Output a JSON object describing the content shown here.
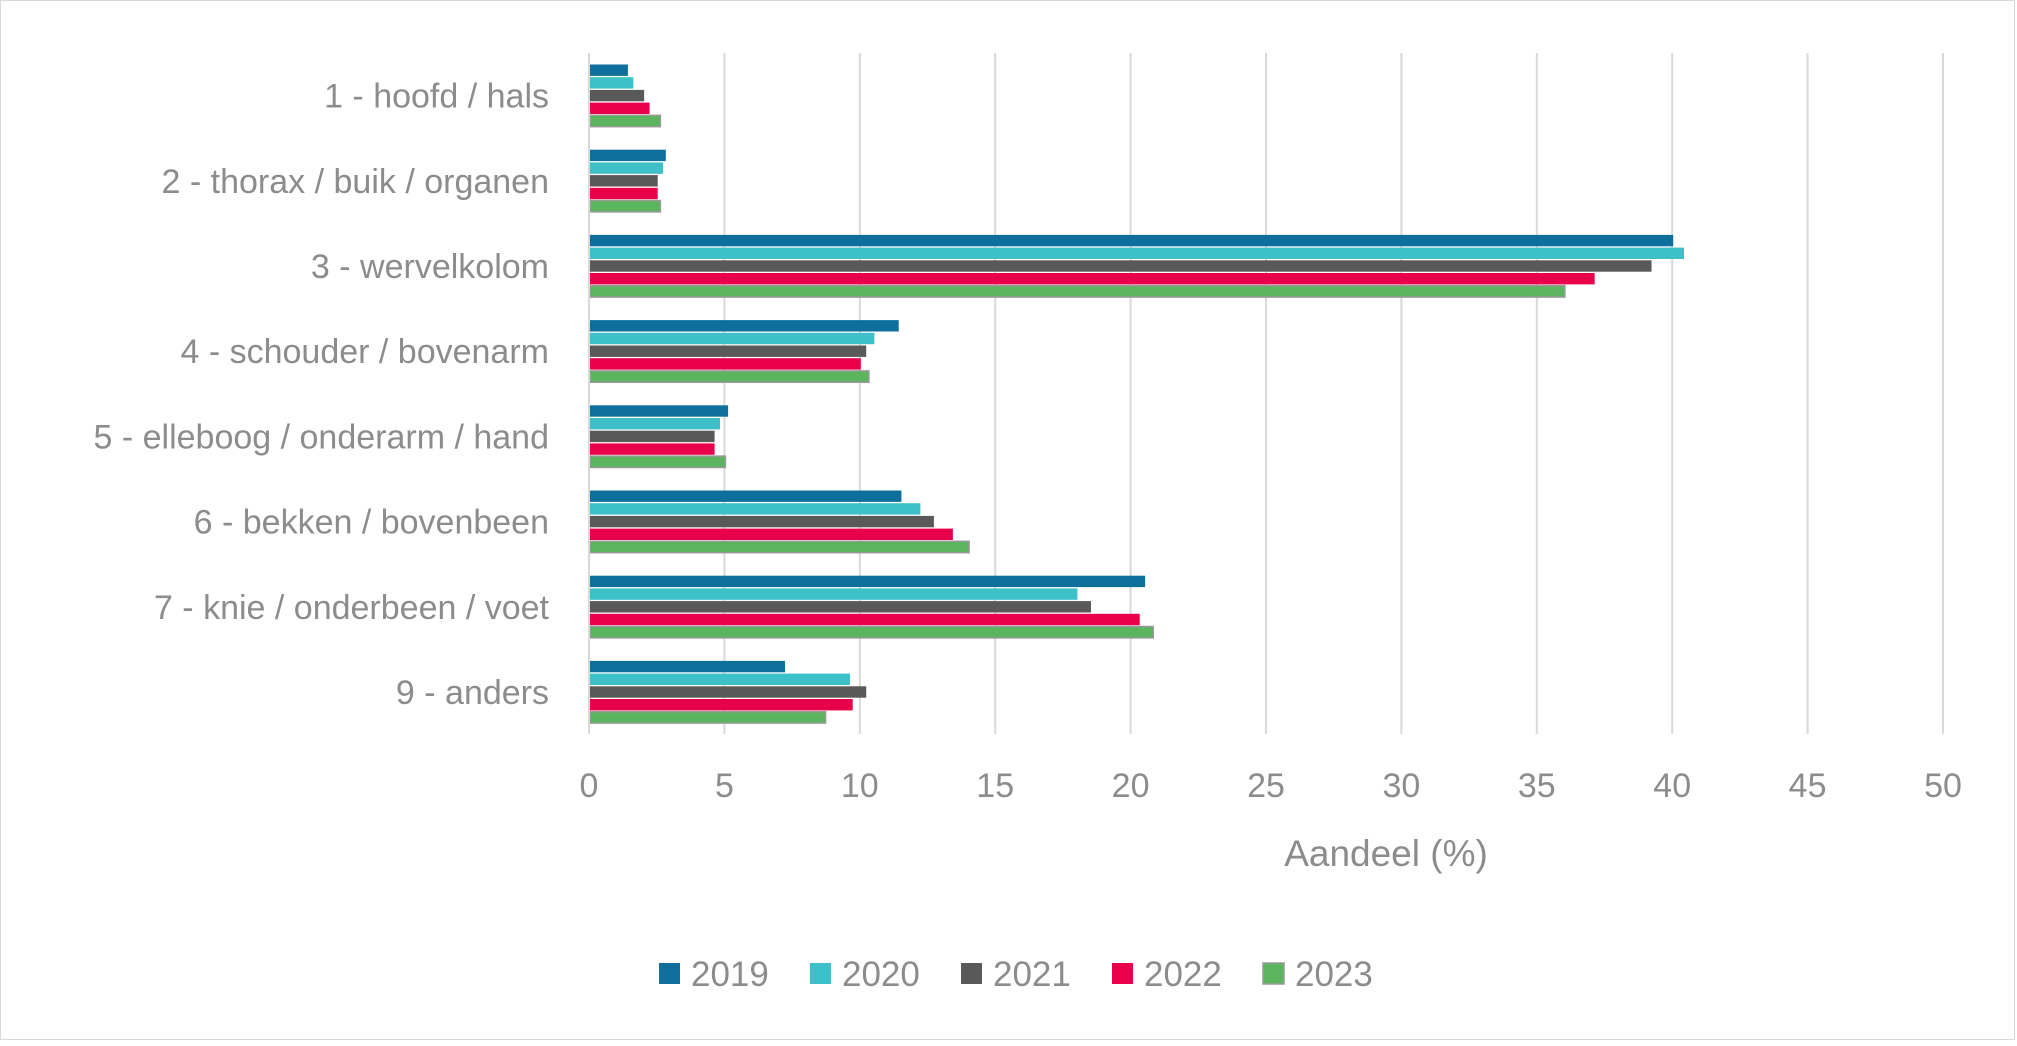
{
  "chart_data": {
    "type": "bar",
    "orientation": "horizontal",
    "title": "",
    "categories": [
      "1 - hoofd / hals",
      "2 - thorax / buik / organen",
      "3 - wervelkolom",
      "4 - schouder / bovenarm",
      "5 - elleboog / onderarm / hand",
      "6 - bekken / bovenbeen",
      "7 - knie / onderbeen / voet",
      "9 - anders"
    ],
    "series": [
      {
        "name": "2019",
        "color": "#0e6f9c",
        "values": [
          1.4,
          2.8,
          40.0,
          11.4,
          5.1,
          11.5,
          20.5,
          7.2
        ]
      },
      {
        "name": "2020",
        "color": "#3ec0c8",
        "values": [
          1.6,
          2.7,
          40.4,
          10.5,
          4.8,
          12.2,
          18.0,
          9.6
        ]
      },
      {
        "name": "2021",
        "color": "#595959",
        "values": [
          2.0,
          2.5,
          39.2,
          10.2,
          4.6,
          12.7,
          18.5,
          10.2
        ]
      },
      {
        "name": "2022",
        "color": "#e8004a",
        "values": [
          2.2,
          2.5,
          37.1,
          10.0,
          4.6,
          13.4,
          20.3,
          9.7
        ]
      },
      {
        "name": "2023",
        "color": "#5ab55e",
        "values": [
          2.6,
          2.6,
          36.0,
          10.3,
          5.0,
          14.0,
          20.8,
          8.7
        ]
      }
    ],
    "xlabel": "Aandeel (%)",
    "ylabel": "",
    "xlim": [
      0,
      50
    ],
    "xticks": [
      "0",
      "5",
      "10",
      "15",
      "20",
      "25",
      "30",
      "35",
      "40",
      "45",
      "50"
    ],
    "grid": true,
    "legend_position": "bottom"
  }
}
